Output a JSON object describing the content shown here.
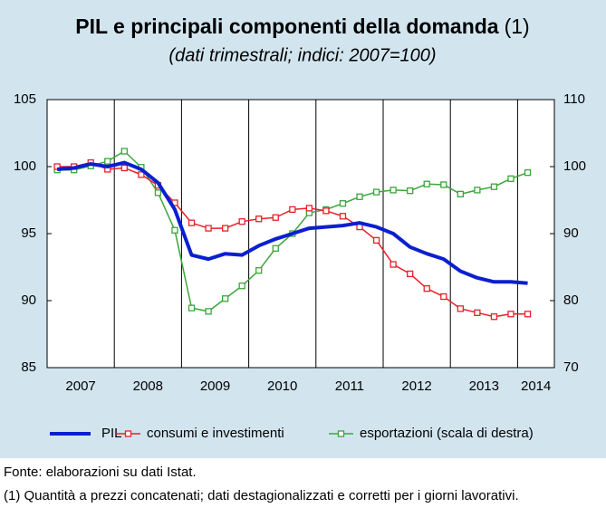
{
  "chart_data": {
    "type": "line",
    "title": "PIL e principali componenti della domanda",
    "title_note": "(1)",
    "subtitle": "(dati trimestrali; indici: 2007=100)",
    "categories": [
      "2007",
      null,
      null,
      null,
      "2008",
      null,
      null,
      null,
      "2009",
      null,
      null,
      null,
      "2010",
      null,
      null,
      null,
      "2011",
      null,
      null,
      null,
      "2012",
      null,
      null,
      null,
      "2013",
      null,
      null,
      null,
      "2014"
    ],
    "series": [
      {
        "name": "PIL",
        "color": "#0a1fd0",
        "marker": false,
        "values": [
          99.8,
          99.9,
          100.2,
          100.0,
          100.3,
          99.8,
          98.8,
          96.8,
          93.4,
          93.1,
          93.5,
          93.4,
          94.1,
          94.6,
          95.0,
          95.4,
          95.5,
          95.6,
          95.8,
          95.5,
          95.0,
          94.0,
          93.5,
          93.1,
          92.2,
          91.7,
          91.4,
          91.4,
          91.3
        ]
      },
      {
        "name": "consumi e investimenti",
        "color": "#e8202a",
        "marker": true,
        "values": [
          100.0,
          100.0,
          100.3,
          99.8,
          99.9,
          99.4,
          98.6,
          97.3,
          95.8,
          95.4,
          95.4,
          95.9,
          96.1,
          96.2,
          96.8,
          96.9,
          96.7,
          96.3,
          95.5,
          94.5,
          92.7,
          92.0,
          90.9,
          90.3,
          89.4,
          89.1,
          88.8,
          89.0,
          89.0
        ]
      },
      {
        "name": "esportazioni (scala di destra)",
        "color": "#3aa63a",
        "marker": true,
        "axis": "y2",
        "values": [
          99.5,
          99.5,
          100.1,
          100.8,
          102.3,
          99.9,
          96.1,
          90.5,
          78.9,
          78.4,
          80.3,
          82.2,
          84.5,
          87.8,
          90.0,
          93.1,
          93.6,
          94.5,
          95.5,
          96.2,
          96.5,
          96.4,
          97.4,
          97.3,
          95.9,
          96.5,
          97.0,
          98.2,
          99.1
        ]
      }
    ],
    "ylim": [
      85,
      105
    ],
    "yticks": [
      85,
      90,
      95,
      100,
      105
    ],
    "y2lim": [
      70,
      110
    ],
    "y2ticks": [
      70,
      80,
      90,
      100,
      110
    ],
    "source": "Fonte: elaborazioni su dati Istat.",
    "note": "(1) Quantità a prezzi concatenati; dati destagionalizzati e corretti per i giorni lavorativi."
  }
}
